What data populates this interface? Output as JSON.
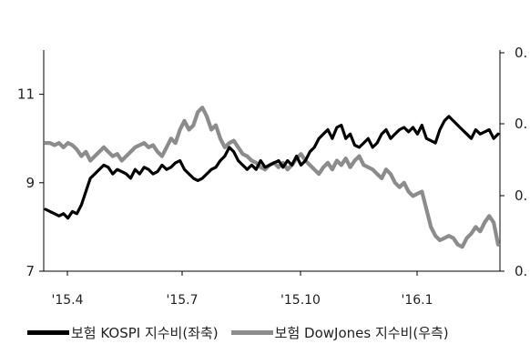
{
  "colors": {
    "series_left": "#000000",
    "series_right": "#8c8c8c",
    "axis": "#000000"
  },
  "chart_data": {
    "type": "line",
    "x_tick_labels": [
      "'15.4",
      "'15.7",
      "'15.10",
      "'16.1"
    ],
    "left_axis": {
      "ylim": [
        7,
        12
      ],
      "tick_labels": [
        "7",
        "9",
        "11"
      ]
    },
    "right_axis": {
      "tick_labels": [
        "0.",
        "0.",
        "0.",
        "0."
      ]
    },
    "legend_placement": "bottom",
    "series": [
      {
        "name": "보험 KOSPI 지수비(좌축)",
        "axis": "left",
        "values": [
          8.4,
          8.35,
          8.3,
          8.25,
          8.3,
          8.2,
          8.35,
          8.3,
          8.5,
          8.8,
          9.1,
          9.2,
          9.3,
          9.4,
          9.35,
          9.2,
          9.3,
          9.25,
          9.2,
          9.1,
          9.3,
          9.2,
          9.35,
          9.3,
          9.2,
          9.25,
          9.4,
          9.3,
          9.35,
          9.45,
          9.5,
          9.3,
          9.2,
          9.1,
          9.05,
          9.1,
          9.2,
          9.3,
          9.35,
          9.5,
          9.6,
          9.8,
          9.7,
          9.5,
          9.4,
          9.3,
          9.4,
          9.3,
          9.5,
          9.35,
          9.4,
          9.45,
          9.5,
          9.35,
          9.5,
          9.4,
          9.6,
          9.4,
          9.5,
          9.7,
          9.8,
          10.0,
          10.1,
          10.2,
          10.0,
          10.25,
          10.3,
          10.0,
          10.1,
          9.85,
          9.8,
          9.9,
          10.0,
          9.8,
          9.9,
          10.1,
          10.2,
          10.0,
          10.1,
          10.2,
          10.25,
          10.15,
          10.25,
          10.1,
          10.3,
          10.0,
          9.95,
          9.9,
          10.2,
          10.4,
          10.5,
          10.4,
          10.3,
          10.2,
          10.1,
          10.0,
          10.2,
          10.1,
          10.15,
          10.2,
          10.0,
          10.1
        ]
      },
      {
        "name": "보험 DowJones 지수비(우측)",
        "axis": "right",
        "values": [
          9.9,
          9.9,
          9.85,
          9.9,
          9.8,
          9.9,
          9.85,
          9.75,
          9.6,
          9.7,
          9.5,
          9.6,
          9.7,
          9.8,
          9.7,
          9.6,
          9.65,
          9.5,
          9.6,
          9.7,
          9.8,
          9.85,
          9.9,
          9.8,
          9.85,
          9.7,
          9.6,
          9.8,
          10.0,
          9.9,
          10.2,
          10.4,
          10.2,
          10.3,
          10.6,
          10.7,
          10.5,
          10.2,
          10.3,
          10.0,
          9.8,
          9.9,
          9.95,
          9.8,
          9.65,
          9.6,
          9.5,
          9.45,
          9.35,
          9.3,
          9.4,
          9.45,
          9.35,
          9.45,
          9.3,
          9.4,
          9.55,
          9.65,
          9.5,
          9.4,
          9.3,
          9.2,
          9.35,
          9.45,
          9.3,
          9.5,
          9.4,
          9.55,
          9.35,
          9.5,
          9.6,
          9.4,
          9.35,
          9.3,
          9.2,
          9.1,
          9.3,
          9.2,
          9.0,
          8.9,
          9.0,
          8.8,
          8.7,
          8.75,
          8.8,
          8.4,
          8.0,
          7.8,
          7.7,
          7.75,
          7.8,
          7.75,
          7.6,
          7.55,
          7.75,
          7.85,
          8.0,
          7.9,
          8.1,
          8.25,
          8.1,
          7.6
        ]
      }
    ]
  }
}
